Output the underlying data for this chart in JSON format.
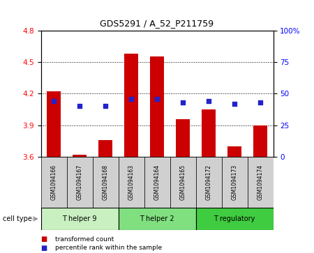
{
  "title": "GDS5291 / A_52_P211759",
  "samples": [
    "GSM1094166",
    "GSM1094167",
    "GSM1094168",
    "GSM1094163",
    "GSM1094164",
    "GSM1094165",
    "GSM1094172",
    "GSM1094173",
    "GSM1094174"
  ],
  "transformed_count": [
    4.22,
    3.62,
    3.76,
    4.58,
    4.55,
    3.96,
    4.05,
    3.7,
    3.9
  ],
  "percentile_rank": [
    44,
    40,
    40,
    46,
    46,
    43,
    44,
    42,
    43
  ],
  "ylim_left": [
    3.6,
    4.8
  ],
  "ylim_right": [
    0,
    100
  ],
  "yticks_left": [
    3.6,
    3.9,
    4.2,
    4.5,
    4.8
  ],
  "yticks_right": [
    0,
    25,
    50,
    75,
    100
  ],
  "bar_color": "#cc0000",
  "dot_color": "#2222cc",
  "group_configs": [
    {
      "label": "T helper 9",
      "indices": [
        0,
        1,
        2
      ],
      "color": "#c8f0c0"
    },
    {
      "label": "T helper 2",
      "indices": [
        3,
        4,
        5
      ],
      "color": "#80e080"
    },
    {
      "label": "T regulatory",
      "indices": [
        6,
        7,
        8
      ],
      "color": "#40cc40"
    }
  ],
  "legend_bar_label": "transformed count",
  "legend_dot_label": "percentile rank within the sample",
  "cell_type_label": "cell type",
  "sample_box_color": "#d0d0d0",
  "baseline": 3.6
}
